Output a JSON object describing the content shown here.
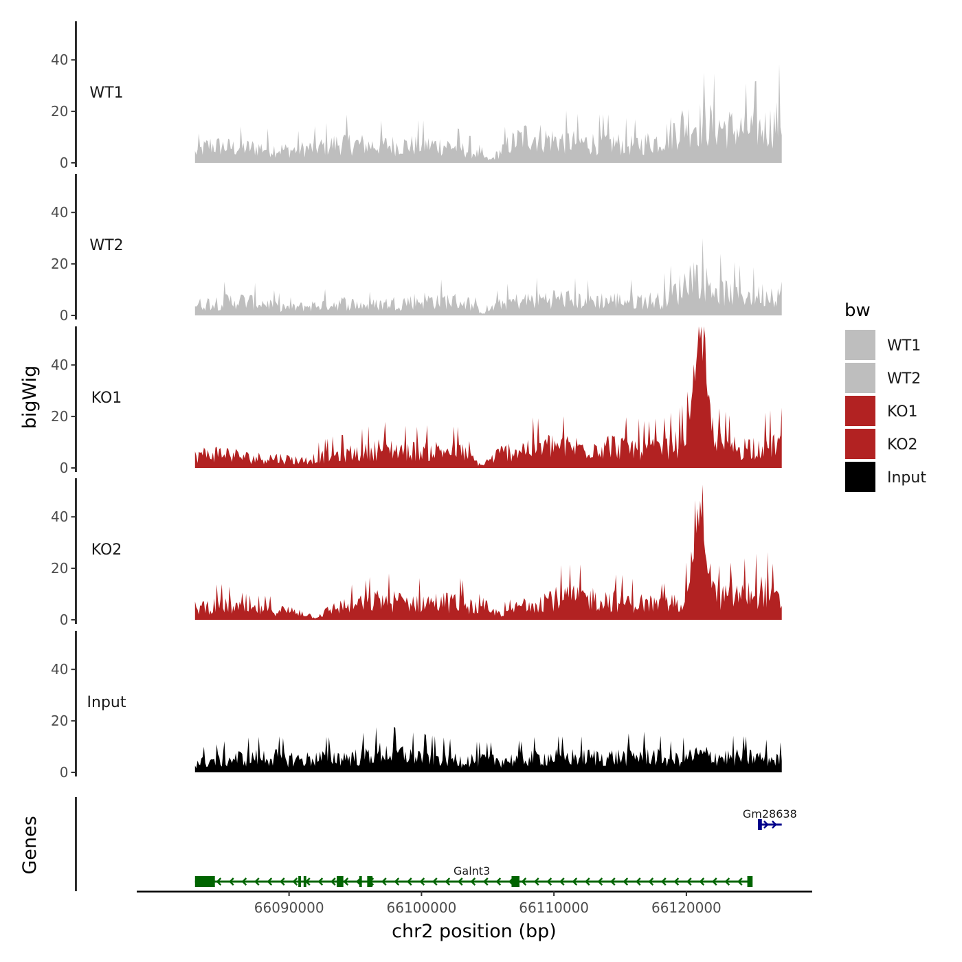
{
  "chart_data": {
    "type": "area",
    "ylabel": "bigWig",
    "xlabel": "chr2 position (bp)",
    "genes_label": "Genes",
    "x_range": [
      66082900,
      66127200
    ],
    "xlim": [
      66078500,
      66129500
    ],
    "ylim": [
      0,
      55
    ],
    "y_ticks": [
      0,
      20,
      40
    ],
    "x_ticks": [
      66090000,
      66100000,
      66110000,
      66120000
    ],
    "legend": {
      "title": "bw",
      "entries": [
        {
          "label": "WT1",
          "color": "#bebebe"
        },
        {
          "label": "WT2",
          "color": "#bebebe"
        },
        {
          "label": "KO1",
          "color": "#b22222"
        },
        {
          "label": "KO2",
          "color": "#b22222"
        },
        {
          "label": "Input",
          "color": "#000000"
        }
      ]
    },
    "series": [
      {
        "name": "WT1",
        "color": "#bebebe",
        "profile": [
          [
            66082900,
            4
          ],
          [
            66084000,
            7
          ],
          [
            66086000,
            6
          ],
          [
            66088000,
            6
          ],
          [
            66090000,
            5
          ],
          [
            66092000,
            6
          ],
          [
            66094000,
            8
          ],
          [
            66096000,
            7
          ],
          [
            66098000,
            7
          ],
          [
            66100000,
            7
          ],
          [
            66102000,
            7
          ],
          [
            66104000,
            4
          ],
          [
            66105200,
            1
          ],
          [
            66106500,
            7
          ],
          [
            66108000,
            11
          ],
          [
            66110000,
            9
          ],
          [
            66112000,
            8
          ],
          [
            66114000,
            8
          ],
          [
            66116000,
            7
          ],
          [
            66118000,
            9
          ],
          [
            66120000,
            16
          ],
          [
            66122000,
            15
          ],
          [
            66124000,
            13
          ],
          [
            66126000,
            14
          ],
          [
            66127200,
            17
          ]
        ],
        "peaks": []
      },
      {
        "name": "WT2",
        "color": "#bebebe",
        "profile": [
          [
            66082900,
            4
          ],
          [
            66084000,
            5
          ],
          [
            66086000,
            6
          ],
          [
            66088000,
            5
          ],
          [
            66090000,
            3
          ],
          [
            66092000,
            4
          ],
          [
            66094000,
            5
          ],
          [
            66096000,
            4
          ],
          [
            66098000,
            5
          ],
          [
            66100000,
            6
          ],
          [
            66102000,
            6
          ],
          [
            66103500,
            5
          ],
          [
            66104700,
            1
          ],
          [
            66106000,
            5
          ],
          [
            66108000,
            6
          ],
          [
            66110000,
            7
          ],
          [
            66112000,
            6
          ],
          [
            66114000,
            6
          ],
          [
            66116000,
            6
          ],
          [
            66118000,
            6
          ],
          [
            66120000,
            12
          ],
          [
            66121500,
            13
          ],
          [
            66123000,
            9
          ],
          [
            66125000,
            8
          ],
          [
            66127200,
            9
          ]
        ],
        "peaks": [
          {
            "x": 66120500,
            "h": 5,
            "w": 500
          }
        ]
      },
      {
        "name": "KO1",
        "color": "#b22222",
        "profile": [
          [
            66082900,
            5
          ],
          [
            66085000,
            6
          ],
          [
            66087000,
            4
          ],
          [
            66089000,
            4
          ],
          [
            66091000,
            3
          ],
          [
            66093000,
            5
          ],
          [
            66095000,
            6
          ],
          [
            66097000,
            8
          ],
          [
            66099000,
            7
          ],
          [
            66101000,
            7
          ],
          [
            66103000,
            7
          ],
          [
            66104500,
            1
          ],
          [
            66106000,
            6
          ],
          [
            66108000,
            8
          ],
          [
            66110000,
            9
          ],
          [
            66112000,
            8
          ],
          [
            66114000,
            9
          ],
          [
            66116000,
            8
          ],
          [
            66118000,
            8
          ],
          [
            66119500,
            10
          ],
          [
            66121000,
            10
          ],
          [
            66122500,
            10
          ],
          [
            66124000,
            8
          ],
          [
            66125500,
            9
          ],
          [
            66127200,
            10
          ]
        ],
        "peaks": [
          {
            "x": 66121000,
            "h": 42,
            "w": 700
          }
        ]
      },
      {
        "name": "KO2",
        "color": "#b22222",
        "profile": [
          [
            66082900,
            5
          ],
          [
            66085000,
            6
          ],
          [
            66087000,
            4
          ],
          [
            66089000,
            4
          ],
          [
            66091000,
            3
          ],
          [
            66092000,
            1
          ],
          [
            66093500,
            5
          ],
          [
            66095000,
            6
          ],
          [
            66097000,
            8
          ],
          [
            66099000,
            7
          ],
          [
            66101000,
            7
          ],
          [
            66103000,
            7
          ],
          [
            66105000,
            3
          ],
          [
            66106500,
            3
          ],
          [
            66108000,
            7
          ],
          [
            66110000,
            9
          ],
          [
            66112000,
            9
          ],
          [
            66114000,
            8
          ],
          [
            66116000,
            7
          ],
          [
            66118000,
            6
          ],
          [
            66119500,
            7
          ],
          [
            66121000,
            10
          ],
          [
            66122500,
            9
          ],
          [
            66124000,
            10
          ],
          [
            66126000,
            12
          ],
          [
            66127200,
            6
          ]
        ],
        "peaks": [
          {
            "x": 66121000,
            "h": 32,
            "w": 700
          }
        ]
      },
      {
        "name": "Input",
        "color": "#000000",
        "profile": [
          [
            66082900,
            4
          ],
          [
            66085000,
            5
          ],
          [
            66087000,
            6
          ],
          [
            66089000,
            6
          ],
          [
            66091000,
            5
          ],
          [
            66093000,
            6
          ],
          [
            66095000,
            6
          ],
          [
            66097000,
            8
          ],
          [
            66099000,
            7
          ],
          [
            66101000,
            6
          ],
          [
            66103000,
            5
          ],
          [
            66105000,
            5
          ],
          [
            66107000,
            5
          ],
          [
            66109000,
            6
          ],
          [
            66111000,
            6
          ],
          [
            66113000,
            6
          ],
          [
            66115000,
            6
          ],
          [
            66117000,
            7
          ],
          [
            66119000,
            5
          ],
          [
            66121000,
            7
          ],
          [
            66123000,
            6
          ],
          [
            66125000,
            6
          ],
          [
            66127200,
            5
          ]
        ],
        "peaks": []
      }
    ],
    "genes": [
      {
        "name": "Galnt3",
        "strand": "-",
        "start": 66082900,
        "end": 66124900,
        "color": "#006400",
        "exons": [
          [
            66082900,
            66084400
          ],
          [
            66090700,
            66090900
          ],
          [
            66091100,
            66091300
          ],
          [
            66093600,
            66094100
          ],
          [
            66095300,
            66095500
          ],
          [
            66095900,
            66096300
          ],
          [
            66106800,
            66107400
          ],
          [
            66124600,
            66125000
          ]
        ]
      },
      {
        "name": "Gm28638",
        "strand": "+",
        "start": 66125400,
        "end": 66127200,
        "color": "#00008b",
        "exons": [
          [
            66125400,
            66125700
          ]
        ]
      }
    ]
  }
}
